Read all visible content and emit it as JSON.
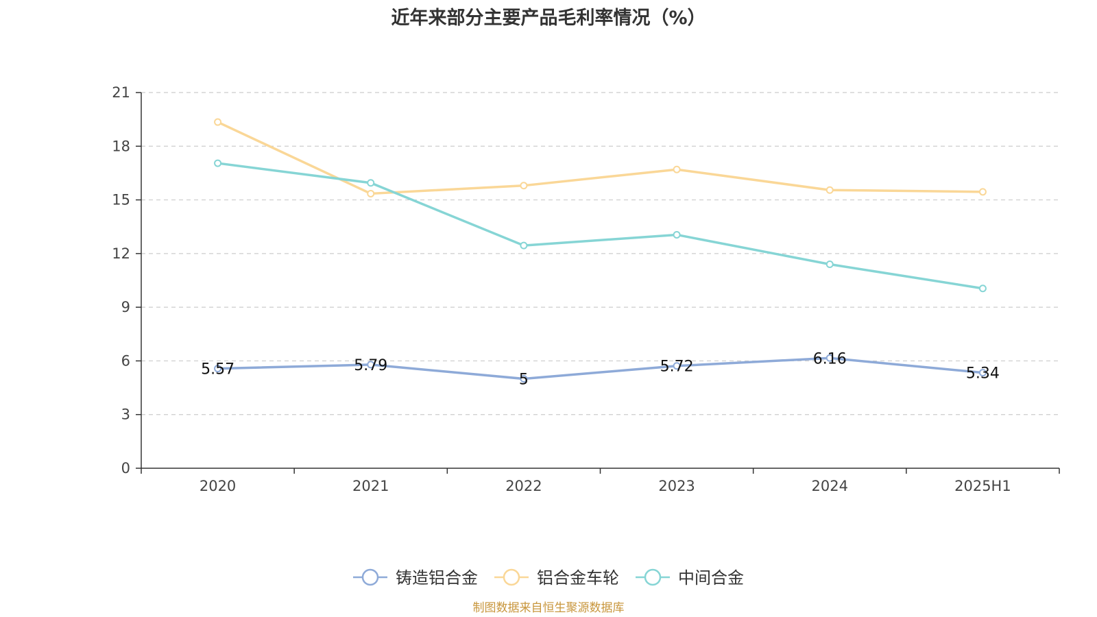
{
  "chart_data": {
    "type": "line",
    "title": "近年来部分主要产品毛利率情况（%）",
    "categories": [
      "2020",
      "2021",
      "2022",
      "2023",
      "2024",
      "2025H1"
    ],
    "ylim": [
      0,
      21
    ],
    "yticks": [
      0,
      3,
      6,
      9,
      12,
      15,
      18,
      21
    ],
    "grid": true,
    "legend_position": "bottom",
    "series": [
      {
        "name": "铸造铝合金",
        "color": "#8eaad8",
        "values": [
          5.57,
          5.79,
          5,
          5.72,
          6.16,
          5.34
        ],
        "data_labels": [
          "5.57",
          "5.79",
          "5",
          "5.72",
          "6.16",
          "5.34"
        ]
      },
      {
        "name": "铝合金车轮",
        "color": "#fad797",
        "values": [
          19.35,
          15.35,
          15.8,
          16.7,
          15.55,
          15.45
        ]
      },
      {
        "name": "中间合金",
        "color": "#86d5d5",
        "values": [
          17.05,
          15.95,
          12.45,
          13.05,
          11.4,
          10.05
        ]
      }
    ]
  },
  "source": "制图数据来自恒生聚源数据库"
}
